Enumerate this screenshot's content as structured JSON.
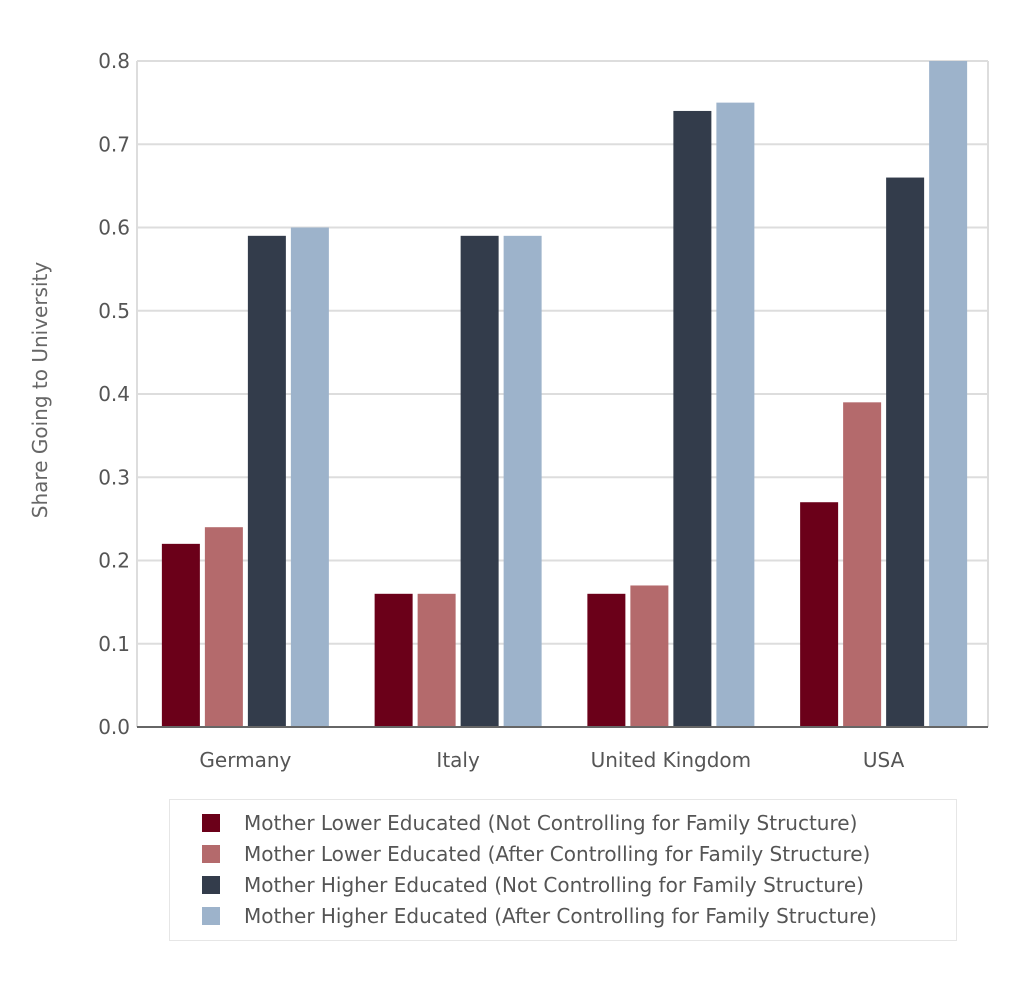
{
  "chart_data": {
    "type": "bar",
    "title": "",
    "xlabel": "",
    "ylabel": "Share Going to University",
    "ylim": [
      0,
      0.8
    ],
    "yticks": [
      "0.0",
      "0.1",
      "0.2",
      "0.3",
      "0.4",
      "0.5",
      "0.6",
      "0.7",
      "0.8"
    ],
    "grid": true,
    "legend_position": "bottom",
    "categories": [
      "Germany",
      "Italy",
      "United Kingdom",
      "USA"
    ],
    "series": [
      {
        "name": "Mother Lower Educated (Not Controlling for Family Structure)",
        "color": "#6b0019",
        "values": [
          0.22,
          0.16,
          0.16,
          0.27
        ]
      },
      {
        "name": "Mother Lower Educated (After Controlling for Family Structure)",
        "color": "#b46a6c",
        "values": [
          0.24,
          0.16,
          0.17,
          0.39
        ]
      },
      {
        "name": "Mother Higher Educated (Not Controlling for Family Structure)",
        "color": "#333c4b",
        "values": [
          0.59,
          0.59,
          0.74,
          0.66
        ]
      },
      {
        "name": "Mother Higher Educated (After Controlling for Family Structure)",
        "color": "#9db3cb",
        "values": [
          0.6,
          0.59,
          0.75,
          0.8
        ]
      }
    ]
  }
}
